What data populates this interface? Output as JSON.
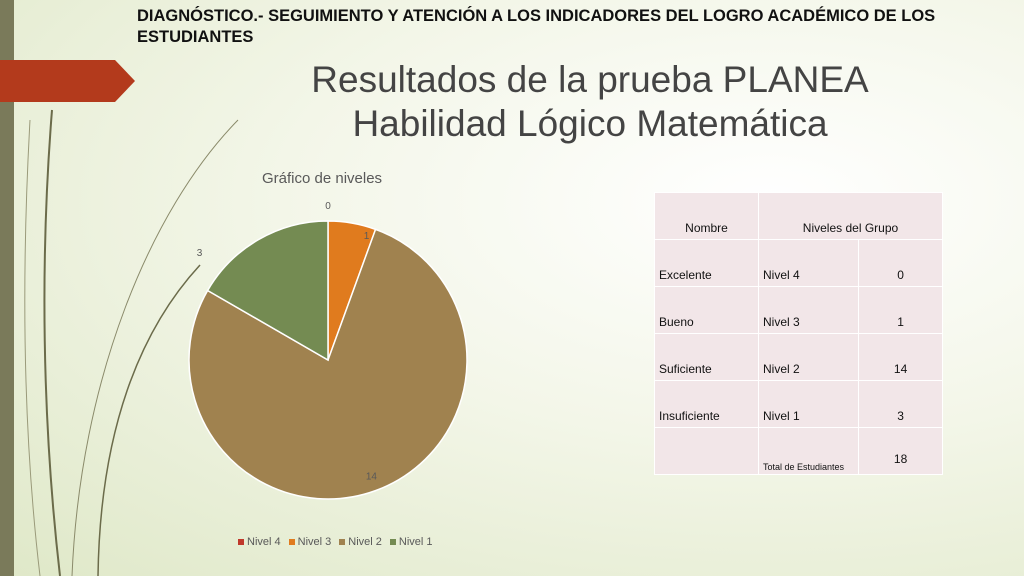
{
  "header": {
    "text": "DIAGNÓSTICO.-  SEGUIMIENTO Y ATENCIÓN A LOS INDICADORES DEL LOGRO ACADÉMICO DE LOS ESTUDIANTES"
  },
  "slide": {
    "title_line1": "Resultados de la prueba PLANEA",
    "title_line2": "Habilidad Lógico Matemática"
  },
  "colors": {
    "nivel4": "#c0392b",
    "nivel3": "#e07b1e",
    "nivel2": "#a0824f",
    "nivel1": "#748b52",
    "red_tab": "#b33a1c"
  },
  "chart_data": {
    "type": "pie",
    "title": "Gráfico de niveles",
    "categories": [
      "Nivel 4",
      "Nivel 3",
      "Nivel 2",
      "Nivel 1"
    ],
    "values": [
      0,
      1,
      14,
      3
    ],
    "data_labels": [
      "0",
      "1",
      "14",
      "3"
    ],
    "legend_position": "bottom"
  },
  "table": {
    "headers": [
      "Nombre",
      "Niveles del Grupo"
    ],
    "rows": [
      [
        "Excelente",
        "Nivel 4",
        "0"
      ],
      [
        "Bueno",
        "Nivel 3",
        "1"
      ],
      [
        "Suficiente",
        "Nivel 2",
        "14"
      ],
      [
        "Insuficiente",
        "Nivel 1",
        "3"
      ]
    ],
    "total_label": "Total de Estudiantes",
    "total_value": "18"
  }
}
